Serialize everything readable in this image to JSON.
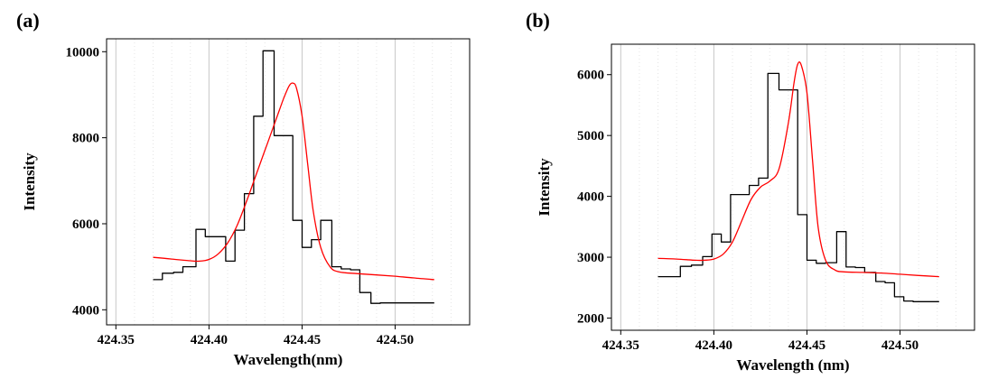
{
  "chart_data": [
    {
      "type": "line",
      "panel_label": "(a)",
      "xlabel": "Wavelength(nm)",
      "ylabel": "Intensity",
      "xlim": [
        424.345,
        424.54
      ],
      "ylim": [
        3650,
        10300
      ],
      "x_ticks": [
        424.35,
        424.4,
        424.45,
        424.5
      ],
      "x_tick_labels": [
        "424.35",
        "424.40",
        "424.45",
        "424.50"
      ],
      "y_ticks": [
        4000,
        6000,
        8000,
        10000
      ],
      "y_tick_labels": [
        "4000",
        "6000",
        "8000",
        "10000"
      ],
      "grid": "vertical",
      "series": [
        {
          "style": "step",
          "color": "#000000",
          "x": [
            424.37,
            424.375,
            424.381,
            424.386,
            424.393,
            424.398,
            424.404,
            424.409,
            424.414,
            424.419,
            424.424,
            424.429,
            424.435,
            424.44,
            424.445,
            424.45,
            424.455,
            424.46,
            424.466,
            424.471,
            424.476,
            424.481,
            424.487,
            424.492,
            424.497,
            424.502,
            424.507,
            424.512,
            424.521
          ],
          "values": [
            4700,
            4850,
            4870,
            5000,
            5870,
            5700,
            5700,
            5130,
            5850,
            6700,
            8500,
            10020,
            8050,
            8050,
            6080,
            5450,
            5630,
            6080,
            5000,
            4950,
            4930,
            4400,
            4150,
            4160,
            4160,
            4160,
            4160,
            4160,
            4160
          ]
        },
        {
          "style": "smooth",
          "color": "#ff0000",
          "x": [
            424.37,
            424.38,
            424.39,
            424.395,
            424.4,
            424.405,
            424.41,
            424.415,
            424.42,
            424.425,
            424.43,
            424.435,
            424.44,
            424.443,
            424.445,
            424.447,
            424.45,
            424.453,
            424.456,
            424.46,
            424.465,
            424.47,
            424.48,
            424.49,
            424.5,
            424.51,
            424.521
          ],
          "values": [
            5220,
            5180,
            5140,
            5130,
            5170,
            5300,
            5550,
            5950,
            6500,
            7100,
            7700,
            8300,
            8900,
            9200,
            9270,
            9150,
            8500,
            7400,
            6300,
            5450,
            5000,
            4880,
            4840,
            4810,
            4780,
            4740,
            4700
          ]
        }
      ]
    },
    {
      "type": "line",
      "panel_label": "(b)",
      "xlabel": "Wavelength (nm)",
      "ylabel": "Intensity",
      "xlim": [
        424.345,
        424.54
      ],
      "ylim": [
        1800,
        6500
      ],
      "x_ticks": [
        424.35,
        424.4,
        424.45,
        424.5
      ],
      "x_tick_labels": [
        "424.35",
        "424.40",
        "424.45",
        "424.50"
      ],
      "y_ticks": [
        2000,
        3000,
        4000,
        5000,
        6000
      ],
      "y_tick_labels": [
        "2000",
        "3000",
        "4000",
        "5000",
        "6000"
      ],
      "grid": "vertical",
      "series": [
        {
          "style": "step",
          "color": "#000000",
          "x": [
            424.37,
            424.376,
            424.382,
            424.388,
            424.394,
            424.399,
            424.404,
            424.409,
            424.414,
            424.419,
            424.424,
            424.429,
            424.435,
            424.44,
            424.445,
            424.45,
            424.455,
            424.46,
            424.466,
            424.471,
            424.476,
            424.481,
            424.487,
            424.492,
            424.497,
            424.502,
            424.507,
            424.512,
            424.521
          ],
          "values": [
            2680,
            2680,
            2850,
            2870,
            3010,
            3380,
            3250,
            4030,
            4030,
            4180,
            4300,
            6020,
            5750,
            5750,
            3700,
            2950,
            2900,
            2910,
            3420,
            2840,
            2830,
            2750,
            2600,
            2580,
            2350,
            2280,
            2270,
            2270,
            2270
          ]
        },
        {
          "style": "smooth",
          "color": "#ff0000",
          "x": [
            424.37,
            424.38,
            424.39,
            424.395,
            424.4,
            424.405,
            424.41,
            424.415,
            424.42,
            424.425,
            424.43,
            424.435,
            424.44,
            424.443,
            424.445,
            424.447,
            424.45,
            424.453,
            424.456,
            424.46,
            424.465,
            424.47,
            424.48,
            424.49,
            424.5,
            424.51,
            424.521
          ],
          "values": [
            2980,
            2970,
            2950,
            2950,
            2970,
            3050,
            3250,
            3600,
            3950,
            4150,
            4250,
            4450,
            5200,
            5850,
            6170,
            6150,
            5700,
            4600,
            3500,
            2950,
            2790,
            2760,
            2750,
            2740,
            2720,
            2700,
            2680
          ]
        }
      ]
    }
  ]
}
